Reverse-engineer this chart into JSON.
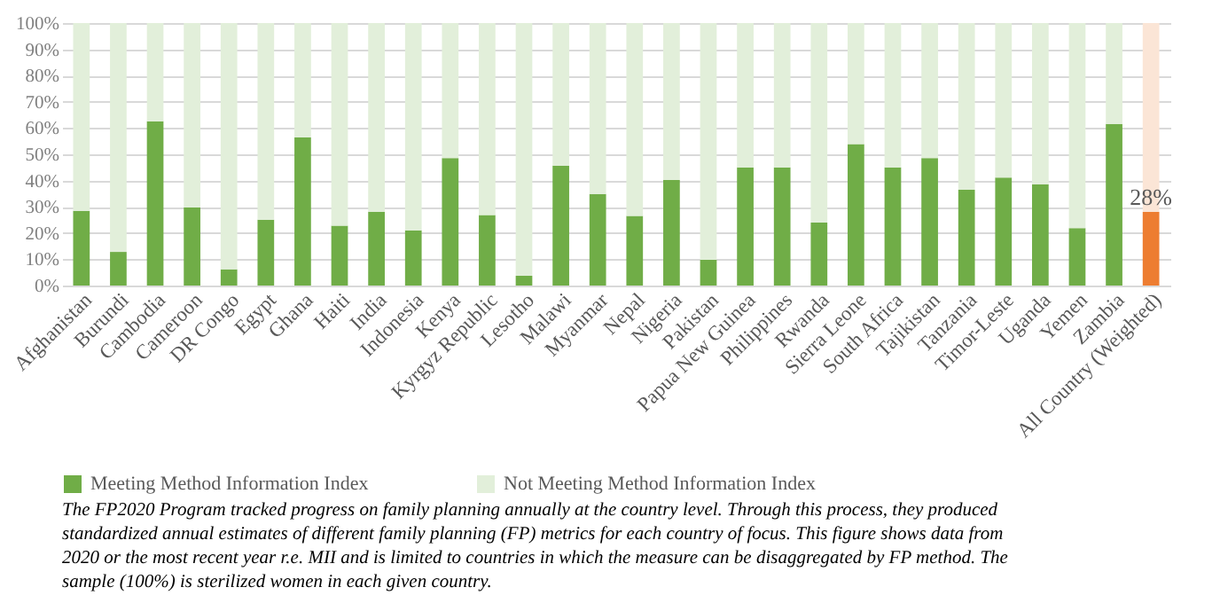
{
  "chart_data": {
    "type": "bar",
    "stacked": true,
    "categories": [
      "Afghanistan",
      "Burundi",
      "Cambodia",
      "Cameroon",
      "DR Congo",
      "Egypt",
      "Ghana",
      "Haiti",
      "India",
      "Indonesia",
      "Kenya",
      "Kyrgyz Republic",
      "Lesotho",
      "Malawi",
      "Myanmar",
      "Nepal",
      "Nigeria",
      "Pakistan",
      "Papua New Guinea",
      "Philippines",
      "Rwanda",
      "Sierra Leone",
      "South Africa",
      "Tajikistan",
      "Tanzania",
      "Timor-Leste",
      "Uganda",
      "Yemen",
      "Zambia",
      "All Country (Weighted)"
    ],
    "series": [
      {
        "name": "Meeting Method Information Index",
        "color": "#70ad47",
        "colors": [
          "#70ad47",
          "#70ad47",
          "#70ad47",
          "#70ad47",
          "#70ad47",
          "#70ad47",
          "#70ad47",
          "#70ad47",
          "#70ad47",
          "#70ad47",
          "#70ad47",
          "#70ad47",
          "#70ad47",
          "#70ad47",
          "#70ad47",
          "#70ad47",
          "#70ad47",
          "#70ad47",
          "#70ad47",
          "#70ad47",
          "#70ad47",
          "#70ad47",
          "#70ad47",
          "#70ad47",
          "#70ad47",
          "#70ad47",
          "#70ad47",
          "#70ad47",
          "#70ad47",
          "#ed7d31"
        ],
        "values": [
          28.5,
          12.8,
          62.6,
          29.7,
          6.2,
          25.1,
          56.4,
          22.8,
          28.1,
          21.0,
          48.6,
          26.9,
          3.7,
          45.7,
          34.9,
          26.5,
          40.2,
          9.8,
          45.0,
          45.0,
          24.0,
          53.9,
          45.0,
          48.6,
          36.5,
          41.1,
          38.6,
          21.9,
          61.6,
          28
        ],
        "value_labels": [
          null,
          null,
          null,
          null,
          null,
          null,
          null,
          null,
          null,
          null,
          null,
          null,
          null,
          null,
          null,
          null,
          null,
          null,
          null,
          null,
          null,
          null,
          null,
          null,
          null,
          null,
          null,
          null,
          null,
          "28%"
        ]
      },
      {
        "name": "Not Meeting Method Information Index",
        "color": "#e2efda",
        "colors": [
          "#e2efda",
          "#e2efda",
          "#e2efda",
          "#e2efda",
          "#e2efda",
          "#e2efda",
          "#e2efda",
          "#e2efda",
          "#e2efda",
          "#e2efda",
          "#e2efda",
          "#e2efda",
          "#e2efda",
          "#e2efda",
          "#e2efda",
          "#e2efda",
          "#e2efda",
          "#e2efda",
          "#e2efda",
          "#e2efda",
          "#e2efda",
          "#e2efda",
          "#e2efda",
          "#e2efda",
          "#e2efda",
          "#e2efda",
          "#e2efda",
          "#e2efda",
          "#e2efda",
          "#fbe5d6"
        ],
        "values": [
          71.5,
          87.2,
          37.4,
          70.3,
          93.8,
          74.9,
          43.6,
          77.2,
          71.9,
          79.0,
          51.4,
          73.1,
          96.3,
          54.3,
          65.1,
          73.5,
          59.8,
          90.2,
          55.0,
          55.0,
          76.0,
          46.1,
          55.0,
          51.4,
          63.5,
          58.9,
          61.4,
          78.1,
          38.4,
          72
        ]
      }
    ],
    "ylim": [
      0,
      100
    ],
    "yticks": [
      {
        "value": 0,
        "label": "0%"
      },
      {
        "value": 10,
        "label": "10%"
      },
      {
        "value": 20,
        "label": "20%"
      },
      {
        "value": 30,
        "label": "30%"
      },
      {
        "value": 40,
        "label": "40%"
      },
      {
        "value": 50,
        "label": "50%"
      },
      {
        "value": 60,
        "label": "60%"
      },
      {
        "value": 70,
        "label": "70%"
      },
      {
        "value": 80,
        "label": "80%"
      },
      {
        "value": 90,
        "label": "90%"
      },
      {
        "value": 100,
        "label": "100%"
      }
    ],
    "grid": "y",
    "legend": "bottom",
    "annotations": [
      "The FP2020 Program tracked progress on family planning annually at the country level.  Through this process, they produced standardized annual estimates of  different family planning (FP) metrics for each country of  focus. This figure shows data from 2020 or the most recent year r.e. MII and is limited to countries in which the measure can be disaggregated by FP method. The sample (100%) is sterilized women in each given country."
    ]
  }
}
